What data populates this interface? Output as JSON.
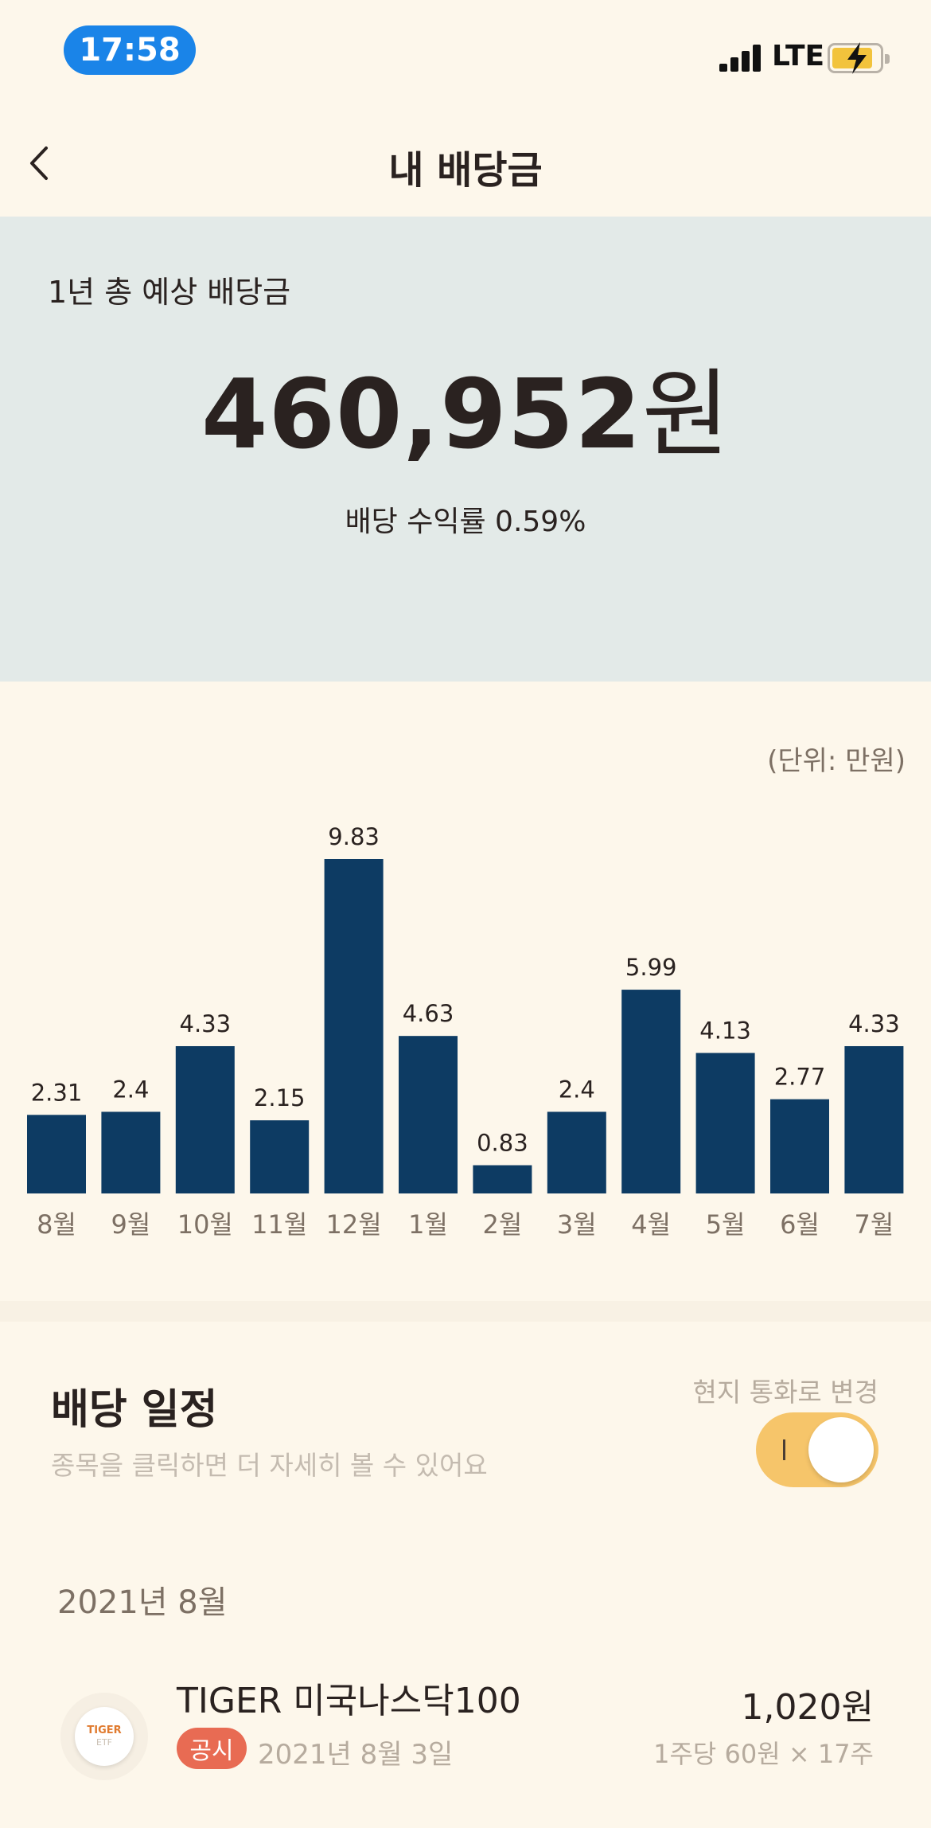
{
  "status_bar": {
    "time": "17:58",
    "network": "LTE"
  },
  "nav": {
    "title": "내 배당금"
  },
  "summary": {
    "label": "1년 총 예상 배당금",
    "amount": "460,952",
    "amount_unit": "원",
    "yield_text": "배당 수익률 0.59%"
  },
  "chart_unit": "(단위: 만원)",
  "chart_data": {
    "type": "bar",
    "categories": [
      "8월",
      "9월",
      "10월",
      "11월",
      "12월",
      "1월",
      "2월",
      "3월",
      "4월",
      "5월",
      "6월",
      "7월"
    ],
    "values": [
      2.31,
      2.4,
      4.33,
      2.15,
      9.83,
      4.63,
      0.83,
      2.4,
      5.99,
      4.13,
      2.77,
      4.33
    ],
    "value_labels": [
      "2.31",
      "2.4",
      "4.33",
      "2.15",
      "9.83",
      "4.63",
      "0.83",
      "2.4",
      "5.99",
      "4.13",
      "2.77",
      "4.33"
    ],
    "bar_color": "#0d3b63",
    "grid": false
  },
  "schedule": {
    "title": "배당 일정",
    "subtitle": "종목을 클릭하면 더 자세히 볼 수 있어요",
    "currency_toggle_label": "현지 통화로 변경",
    "month": "2021년 8월",
    "items": [
      {
        "logo_text_top": "TIGER",
        "logo_text_bottom": "ETF",
        "name": "TIGER 미국나스닥100",
        "badge": "공시",
        "date": "2021년 8월 3일",
        "amount": "1,020원",
        "detail": "1주당 60원 × 17주"
      }
    ]
  },
  "colors": {
    "background": "#fdf7eb",
    "summary_bg": "#e3eae8",
    "accent_toggle": "#f6c56a",
    "badge": "#e86b53",
    "time_pill": "#1a84e8"
  }
}
